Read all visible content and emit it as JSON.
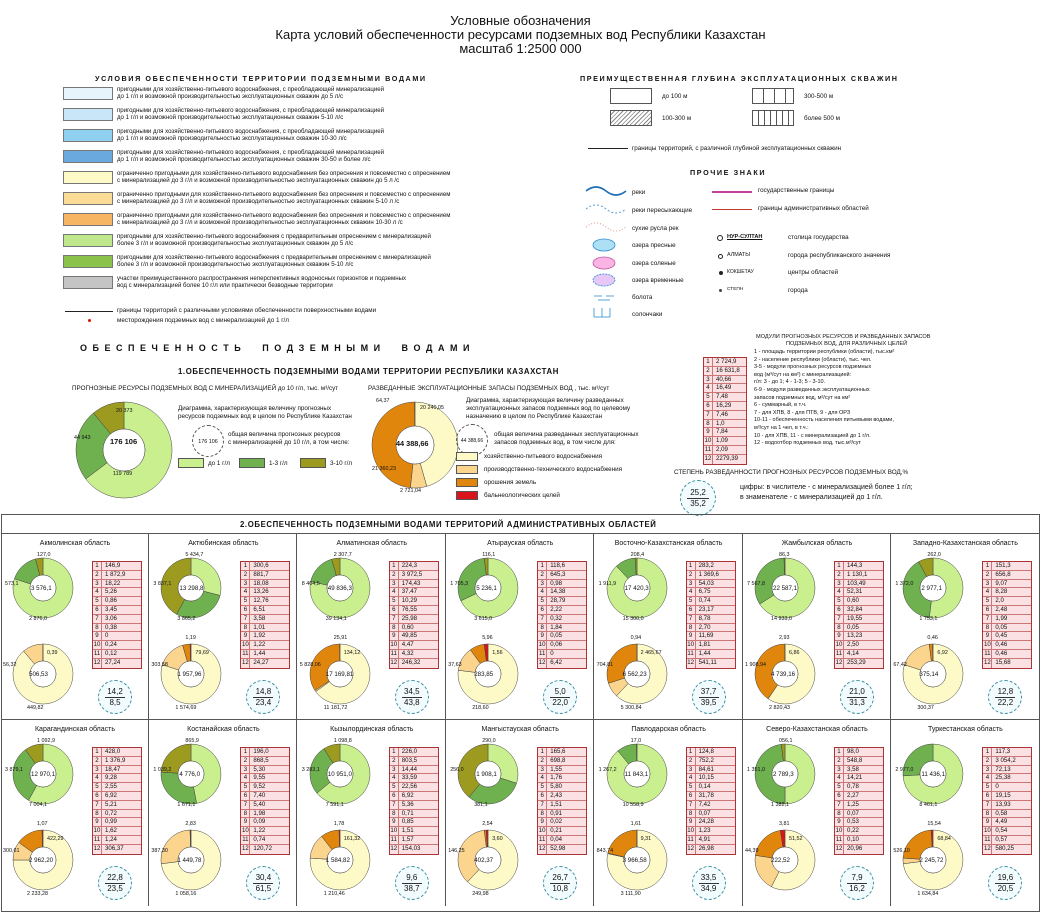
{
  "header": {
    "line1": "Условные обозначения",
    "line2": "Карта условий обеспеченности ресурсами подземных вод Республики Казахстан",
    "line3": "масштаб 1:2500 000"
  },
  "conditions": {
    "title": "УСЛОВИЯ ОБЕСПЕЧЕННОСТИ ТЕРРИТОРИИ ПОДЗЕМНЫМИ ВОДАМИ",
    "items": [
      {
        "color": "#e8f4fc",
        "text1": "пригодными для хозяйственно-питьевого водоснабжения, с преобладающей минерализацией",
        "text2": "до 1 г/л  и возможной производительностью эксплуатационных скважин до 5 л/с"
      },
      {
        "color": "#c9e6f8",
        "text1": "пригодными для хозяйственно-питьевого водоснабжения, с преобладающей минерализацией",
        "text2": "до 1 г/л  и возможной производительностью эксплуатационных скважин  5-10 л/с"
      },
      {
        "color": "#8fd0f0",
        "text1": "пригодными для хозяйственно-питьевого водоснабжения, с преобладающей минерализацией",
        "text2": "до 1 г/л  и возможной производительностью эксплуатационных скважин  10-30 л/с"
      },
      {
        "color": "#6aa9de",
        "text1": "пригодными для хозяйственно-питьевого водоснабжения, с преобладающей минерализацией",
        "text2": "до 1 г/л  и возможной производительностью эксплуатационных скважин  30-50 и более л/с"
      },
      {
        "color": "#fdfac8",
        "text1": "ограниченно пригодными для хозяйственно-питьевого водоснабжения без опреснения и повсеместно с опреснением",
        "text2": "с минерализацией до 3 г/л  и возможной производительностью эксплуатационных скважин до 5 л /с"
      },
      {
        "color": "#fbdc96",
        "text1": "ограниченно пригодными для хозяйственно-питьевого водоснабжения без опреснения и повсеместно с опреснением",
        "text2": "с минерализацией до 3 г/л  и возможной производительностью эксплуатационных скважин  5-10 л /с"
      },
      {
        "color": "#f5b562",
        "text1": "ограниченно пригодными для хозяйственно-питьевого водоснабжения без опреснения и повсеместно с опреснением",
        "text2": "с минерализацией до 3 г/л  и возможной производительностью эксплуатационных скважин 10-30 л /с"
      },
      {
        "color": "#bfe88c",
        "text1": "пригодными для хозяйственно-питьевого водоснабжения с предварительным опреснением с минерализацией",
        "text2": "более 3 г/л  и возможной производительностью эксплуатационных скважин до 5 л/с"
      },
      {
        "color": "#8bc34a",
        "text1": "пригодными для хозяйственно-питьевого водоснабжения с предварительным опреснением с минерализацией",
        "text2": "более 3 г/л  и возможной производительностью эксплуатационных скважин 5-10 л/с"
      },
      {
        "color": "#c4c4c4",
        "text1": "участки преимущественного распространения неперспективных водоносных горизонтов и подземных",
        "text2": "вод с минерализацией более 10 г/л или практически безводные территории"
      }
    ],
    "line_label": "границы территорий с различными условиями обеспеченности поверхностными водами",
    "dot_label": "месторождения подземных вод с минерализацией до 1 г/л"
  },
  "depth": {
    "title": "ПРЕИМУЩЕСТВЕННАЯ ГЛУБИНА ЭКСПЛУАТАЦИОННЫХ СКВАЖИН",
    "d1": "до 100 м",
    "d2": "100-300 м",
    "d3": "300-500 м",
    "d4": "более 500 м",
    "boundary": "границы территорий, с различной глубиной эксплуатационных скважин"
  },
  "other": {
    "title": "ПРОЧИЕ ЗНАКИ",
    "rivers": "реки",
    "dry_rivers": "реки пересыхающие",
    "dry_beds": "сухие русла рек",
    "fresh_lakes": "озера пресные",
    "salt_lakes": "озера соленые",
    "temp_lakes": "озера временные",
    "swamps": "болота",
    "salt_marsh": "солончаки",
    "state_border": "государственные границы",
    "admin_border": "границы административных областей",
    "capital_sym": "НУР-СУЛТАН",
    "capital": "столица государства",
    "rep_sym": "АЛМАТЫ",
    "rep": "города республиканского значения",
    "center_sym": "КОКШЕТАУ",
    "center": "центры областей",
    "city_sym": "СТЕПН",
    "city": "города"
  },
  "section1": {
    "big": "О Б Е С П Е Ч Е Н Н О С Т Ь     П О Д З Е М Н Ы М И     В О Д А М И",
    "title": "1.ОБЕСПЕЧЕННОСТЬ ПОДЗЕМНЫМИ ВОДАМИ ТЕРРИТОРИИ РЕСПУБЛИКИ КАЗАХСТАН",
    "left_title": "ПРОГНОЗНЫЕ РЕСУРСЫ ПОДЗЕМНЫХ ВОД С МИНЕРАЛИЗАЦИЕЙ до 10 г/л, тыс. м³/сут",
    "left_desc1": "Диаграмма, характеризующая величину прогнозных",
    "left_desc2": "ресурсов подземных вод в целом по Республике Казахстан",
    "left_total_label1": "общая величина прогнозных ресурсов",
    "left_total_label2": "с минерализацией до 10 г/л, в том числе:",
    "left_center": "176 106",
    "left_sample": "176 106",
    "left_v1": "119 789",
    "left_v2": "44 943",
    "left_v3": "20 373",
    "leg1": "до 1 г/л",
    "leg2": "1-3 г/л",
    "leg3": "3-10 г/л",
    "mid_title": "РАЗВЕДАННЫЕ ЭКСПЛУАТАЦИОННЫЕ ЗАПАСЫ ПОДЗЕМНЫХ ВОД , тыс. м³/сут",
    "mid_desc1": "Диаграмма, характеризующая величину разведанных",
    "mid_desc2": "эксплуатационных запасов подземных вод по целевому",
    "mid_desc3": "назначению   в  целом  по  Республике  Казахстан",
    "mid_total1": "общая величина разведанных эксплуатационных",
    "mid_total2": "запасов подземных вод, в том числе для:",
    "mid_center": "44 388,66",
    "mid_sample": "44 388,66",
    "mid_v1": "64,37",
    "mid_v2": "20 240,05",
    "mid_v3": "21 360,23",
    "mid_v4": "2 721,04",
    "p1": "хозяйственно-питьевого водоснабжения",
    "p2": "производственно-технического водоснабжения",
    "p3": "орошения земель",
    "p4": "бальнеологических целей",
    "mod_title1": "МОДУЛИ ПРОГНОЗНЫХ РЕСУРСОВ  И РАЗВЕДАННЫХ ЗАПАСОВ",
    "mod_title2": "ПОДЗЕМНЫХ ВОД, ДЛЯ РАЗЛИЧНЫХ ЦЕЛЕЙ",
    "mod_rows": [
      "2 724,9",
      "16 631,8",
      "40,66",
      "16,49",
      "7,48",
      "16,29",
      "7,46",
      "1,0",
      "7,84",
      "1,09",
      "2,09",
      "2279,39"
    ],
    "mod_notes": [
      "1 - площадь территории республики (области), тыс.км²",
      "2 - население республики (области), тыс. чел.",
      "3-5 - модули прогнозных ресурсов подземных",
      "вод (м³/сут на км²) с минерализацией:",
      "г/л: 3 - до 1; 4 - 1-3; 5 - 3-10.",
      "6-9 - модули разведанных эксплуатационных",
      "запасов подземных вод, м³/сут на км²",
      "6 - суммарный, в т.ч.",
      "7 - для ХПВ, 8 - для ПТВ, 9 - для ОРЗ",
      "10-11 - обеспеченность населения питьевыми водами,",
      "м³/сут на 1 чел, в т.ч.:",
      "10 - для ХПВ, 11 - с минерализацией до 1 г/л.",
      "12 - водоотбор подземных вод, тыс.м³/сут"
    ],
    "degree_title": "СТЕПЕНЬ РАЗВЕДАННОСТИ ПРОГНОЗНЫХ РЕСУРСОВ ПОДЗЕМНЫХ ВОД,%",
    "degree_top": "25,2",
    "degree_bot": "35,2",
    "degree_note1": "цифры: в числителе - с минерализацией более 1 г/л;",
    "degree_note2": "в знаменателе - с минерализацией до 1 г/л."
  },
  "section2": {
    "title": "2.ОБЕСПЕЧЕННОСТЬ ПОДЗЕМНЫМИ ВОДАМИ ТЕРРИТОРИЙ АДМИНИСТРАТИВНЫХ ОБЛАСТЕЙ",
    "regions": [
      {
        "name": "Акмолинская область",
        "c1": "3 576,1",
        "a": "2 876,0",
        "b": "573,1",
        "c": "127,0",
        "c2": "506,53",
        "d": "449,82",
        "e": "56,32",
        "f": "0,39",
        "mods": [
          "146,9",
          "1 872,9",
          "18,22",
          "5,26",
          "0,86",
          "3,45",
          "3,06",
          "0,38",
          "0",
          "0,24",
          "0,12",
          "27,24"
        ],
        "top": "14,2",
        "bot": "8,5",
        "fr": [
          0.8,
          0.16,
          0.04
        ],
        "fp": [
          0.888,
          0.111,
          0,
          0.001
        ]
      },
      {
        "name": "Актюбинская область",
        "c1": "13 298,8",
        "a": "3 865,2",
        "b": "3 837,1",
        "c": "5 434,7",
        "c2": "1 957,96",
        "d": "1 574,69",
        "e": "303,58",
        "f": "79,69",
        "g": "1,19",
        "mods": [
          "300,6",
          "881,7",
          "18,08",
          "13,26",
          "12,76",
          "6,51",
          "3,58",
          "1,01",
          "1,92",
          "1,22",
          "1,44",
          "24,27"
        ],
        "top": "14,8",
        "bot": "23,4",
        "fr": [
          0.29,
          0.29,
          0.42
        ],
        "fp": [
          0.8,
          0.155,
          0.04,
          0.005
        ]
      },
      {
        "name": "Алматинская область",
        "c1": "49 836,3",
        "a": "39 134,1",
        "b": "8 404,5",
        "c": "2 307,7",
        "c2": "17 169,81",
        "d": "11 181,72",
        "e": "5 828,06",
        "f": "134,12",
        "g": "25,91",
        "mods": [
          "224,3",
          "3 972,5",
          "174,43",
          "37,47",
          "10,29",
          "76,55",
          "25,98",
          "0,60",
          "49,85",
          "4,47",
          "4,32",
          "246,32"
        ],
        "top": "34,5",
        "bot": "43,8",
        "fr": [
          0.785,
          0.17,
          0.045
        ],
        "fp": [
          0.65,
          0.008,
          0.34,
          0.002
        ]
      },
      {
        "name": "Атырауская область",
        "c1": "5 236,1",
        "a": "3 615,0",
        "b": "1 705,3",
        "c": "116,1",
        "c2": "283,85",
        "d": "218,60",
        "e": "37,63",
        "f": "1,56",
        "g": "5,96",
        "mods": [
          "118,6",
          "645,3",
          "0,98",
          "14,38",
          "28,79",
          "2,22",
          "0,32",
          "1,84",
          "0,05",
          "0,06",
          "0",
          "6,42"
        ],
        "top": "5,0",
        "bot": "22,0",
        "fr": [
          0.68,
          0.3,
          0.02
        ],
        "fp": [
          0.77,
          0.13,
          0.08,
          0.02
        ]
      },
      {
        "name": "Восточно-Казахстанская область",
        "c1": "17 420,3",
        "a": "15 300,0",
        "b": "1 911,9",
        "c": "208,4",
        "c2": "6 562,23",
        "d": "5 300,84",
        "e": "704,81",
        "f": "2 465,67",
        "g": "0,94",
        "mods": [
          "283,2",
          "1 369,6",
          "54,03",
          "6,75",
          "0,74",
          "23,17",
          "8,78",
          "2,70",
          "11,69",
          "1,81",
          "1,44",
          "541,11"
        ],
        "top": "37,7",
        "bot": "39,5",
        "fr": [
          0.88,
          0.11,
          0.01
        ],
        "fp": [
          0.62,
          0.08,
          0.3,
          0.001
        ]
      },
      {
        "name": "Жамбылская область",
        "c1": "22 587,1",
        "a": "14 933,0",
        "b": "7 567,8",
        "c": "86,3",
        "c2": "4 739,16",
        "d": "2 820,43",
        "e": "1 908,94",
        "f": "6,86",
        "g": "2,93",
        "mods": [
          "144,3",
          "1 130,1",
          "103,49",
          "52,31",
          "0,60",
          "32,84",
          "19,55",
          "0,05",
          "13,23",
          "2,50",
          "4,14",
          "253,29"
        ],
        "top": "21,0",
        "bot": "31,3",
        "fr": [
          0.66,
          0.335,
          0.005
        ],
        "fp": [
          0.595,
          0.001,
          0.403,
          0.001
        ]
      },
      {
        "name": "Западно-Казахстанская область",
        "c1": "2 977,1",
        "a": "1 753,1",
        "b": "1 372,0",
        "c": "262,0",
        "c2": "375,14",
        "d": "300,37",
        "e": "67,42",
        "f": "6,92",
        "g": "0,46",
        "mods": [
          "151,3",
          "656,8",
          "9,07",
          "8,28",
          "2,0",
          "2,48",
          "1,99",
          "0,05",
          "0,45",
          "0,46",
          "0,46",
          "15,68"
        ],
        "top": "12,8",
        "bot": "22,2",
        "fr": [
          0.52,
          0.4,
          0.08
        ],
        "fp": [
          0.8,
          0.18,
          0.018,
          0.002
        ]
      },
      {
        "name": "Карагандинская область",
        "c1": "12 970,1",
        "a": "7 004,1",
        "b": "3 879,1",
        "c": "1 092,9",
        "c2": "2 962,20",
        "d": "2 233,28",
        "e": "300,61",
        "f": "422,29",
        "g": "1,07",
        "mods": [
          "428,0",
          "1 376,9",
          "18,47",
          "9,28",
          "2,55",
          "6,92",
          "5,21",
          "0,72",
          "0,99",
          "1,62",
          "1,24",
          "306,37"
        ],
        "top": "22,8",
        "bot": "23,5",
        "fr": [
          0.58,
          0.32,
          0.1
        ],
        "fp": [
          0.75,
          0.1,
          0.145,
          0.005
        ]
      },
      {
        "name": "Костанайская область",
        "c1": "4 776,0",
        "a": "1 671,1",
        "b": "1 039,2",
        "c": "865,9",
        "c2": "1 449,78",
        "d": "1 058,16",
        "e": "387,30",
        "f": "",
        "g": "2,83",
        "mods": [
          "196,0",
          "868,5",
          "5,30",
          "9,55",
          "9,52",
          "7,40",
          "5,40",
          "1,98",
          "0,09",
          "1,22",
          "0,74",
          "120,72"
        ],
        "top": "30,4",
        "bot": "61,5",
        "fr": [
          0.47,
          0.29,
          0.24
        ],
        "fp": [
          0.73,
          0.265,
          0.003,
          0.002
        ]
      },
      {
        "name": "Кызылординская область",
        "c1": "10 951,0",
        "a": "7 591,1",
        "b": "3 283,1",
        "c": "1 098,8",
        "c2": "1 584,82",
        "d": "1 210,46",
        "e": "",
        "f": "161,32",
        "g": "1,78",
        "mods": [
          "226,0",
          "803,5",
          "14,44",
          "33,59",
          "22,56",
          "6,92",
          "5,36",
          "0,71",
          "0,85",
          "1,51",
          "1,57",
          "154,03"
        ],
        "top": "9,6",
        "bot": "38,7",
        "fr": [
          0.64,
          0.27,
          0.09
        ],
        "fp": [
          0.76,
          0.135,
          0.1,
          0.005
        ]
      },
      {
        "name": "Мангыстауская область",
        "c1": "1 908,1",
        "a": "381,1",
        "b": "256,0",
        "c": "290,0",
        "c2": "402,37",
        "d": "249,98",
        "e": "146,25",
        "f": "3,60",
        "g": "2,54",
        "mods": [
          "165,6",
          "698,8",
          "1,55",
          "1,76",
          "5,80",
          "2,43",
          "1,51",
          "0,91",
          "0,02",
          "0,21",
          "0,04",
          "52,98"
        ],
        "top": "26,7",
        "bot": "10,8",
        "fr": [
          0.3,
          0.31,
          0.39
        ],
        "fp": [
          0.62,
          0.36,
          0.01,
          0.01
        ]
      },
      {
        "name": "Павлодарская область",
        "c1": "11 843,1",
        "a": "10 558,9",
        "b": "1 267,2",
        "c": "17,0",
        "c2": "3 966,58",
        "d": "3 111,90",
        "e": "843,74",
        "f": "9,31",
        "g": "1,61",
        "mods": [
          "124,8",
          "752,2",
          "84,61",
          "10,15",
          "0,14",
          "31,78",
          "7,42",
          "0,07",
          "24,28",
          "1,23",
          "4,91",
          "26,98"
        ],
        "top": "33,5",
        "bot": "34,9",
        "fr": [
          0.89,
          0.107,
          0.003
        ],
        "fp": [
          0.784,
          0.003,
          0.212,
          0.001
        ]
      },
      {
        "name": "Северо-Казахстанская область",
        "c1": "2 789,3",
        "a": "1 382,1",
        "b": "1 351,0",
        "c": "056,1",
        "c2": "222,52",
        "d": "",
        "e": "44,39",
        "f": "51,52",
        "g": "3,81",
        "mods": [
          "98,0",
          "548,8",
          "3,58",
          "14,21",
          "0,78",
          "2,27",
          "1,25",
          "0,07",
          "0,53",
          "0,22",
          "0,10",
          "20,96"
        ],
        "top": "7,9",
        "bot": "16,2",
        "fr": [
          0.5,
          0.48,
          0.02
        ],
        "fp": [
          0.575,
          0.2,
          0.2,
          0.025
        ]
      },
      {
        "name": "Туркестанская область",
        "c1": "11 436,1",
        "a": "8 461,1",
        "b": "2 977,0",
        "c": "",
        "c2": "2 245,72",
        "d": "1 634,84",
        "e": "526,10",
        "f": "68,84",
        "g": "15,54",
        "mods": [
          "117,3",
          "3 054,2",
          "72,13",
          "25,38",
          "0",
          "19,15",
          "13,93",
          "0,58",
          "4,49",
          "0,54",
          "0,57",
          "580,25"
        ],
        "top": "19,6",
        "bot": "20,5",
        "fr": [
          0.74,
          0.26,
          0
        ],
        "fp": [
          0.73,
          0.03,
          0.23,
          0.01
        ]
      }
    ]
  }
}
